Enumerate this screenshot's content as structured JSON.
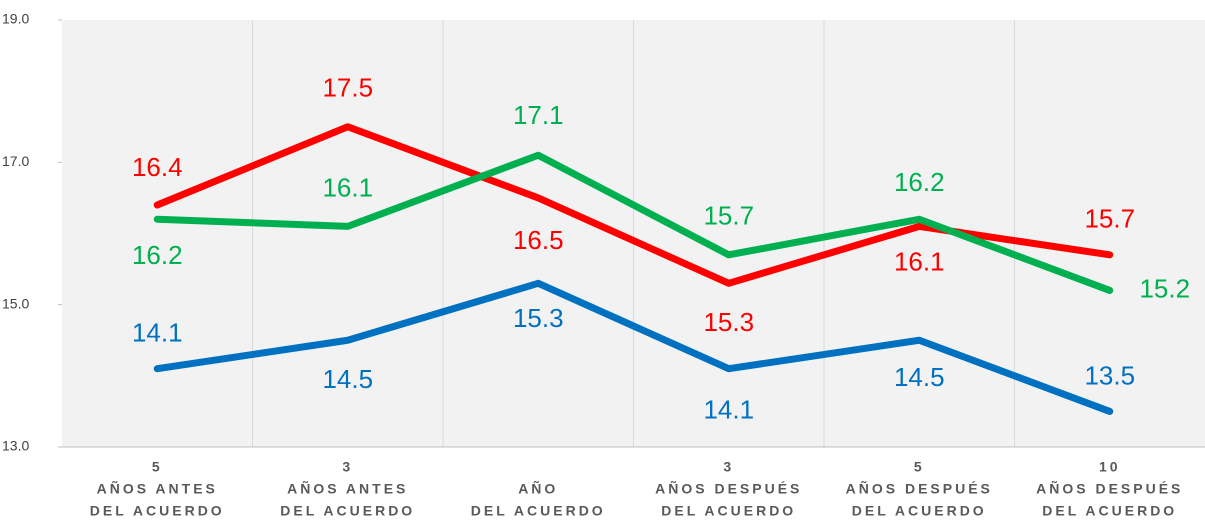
{
  "chart_data": {
    "type": "line",
    "categories": [
      [
        "5",
        "AÑOS ANTES",
        "DEL ACUERDO"
      ],
      [
        "3",
        "AÑOS ANTES",
        "DEL ACUERDO"
      ],
      [
        "AÑO",
        "DEL ACUERDO"
      ],
      [
        "3",
        "AÑOS DESPUÉS",
        "DEL ACUERDO"
      ],
      [
        "5",
        "AÑOS DESPUÉS",
        "DEL ACUERDO"
      ],
      [
        "10",
        "AÑOS DESPUÉS",
        "DEL ACUERDO"
      ]
    ],
    "series": [
      {
        "color": "#ff0000",
        "values": [
          16.4,
          17.5,
          16.5,
          15.3,
          16.1,
          15.7
        ]
      },
      {
        "color": "#00b050",
        "values": [
          16.2,
          16.1,
          17.1,
          15.7,
          16.2,
          15.2
        ]
      },
      {
        "color": "#0070c0",
        "values": [
          14.1,
          14.5,
          15.3,
          14.1,
          14.5,
          13.5
        ]
      }
    ],
    "ylim": [
      13,
      19
    ],
    "yticks": [
      {
        "value": 13,
        "label": "13.0"
      },
      {
        "value": 15,
        "label": "15.0"
      },
      {
        "value": 17,
        "label": "17.0"
      },
      {
        "value": 19,
        "label": "19.0"
      }
    ],
    "grid": true
  }
}
